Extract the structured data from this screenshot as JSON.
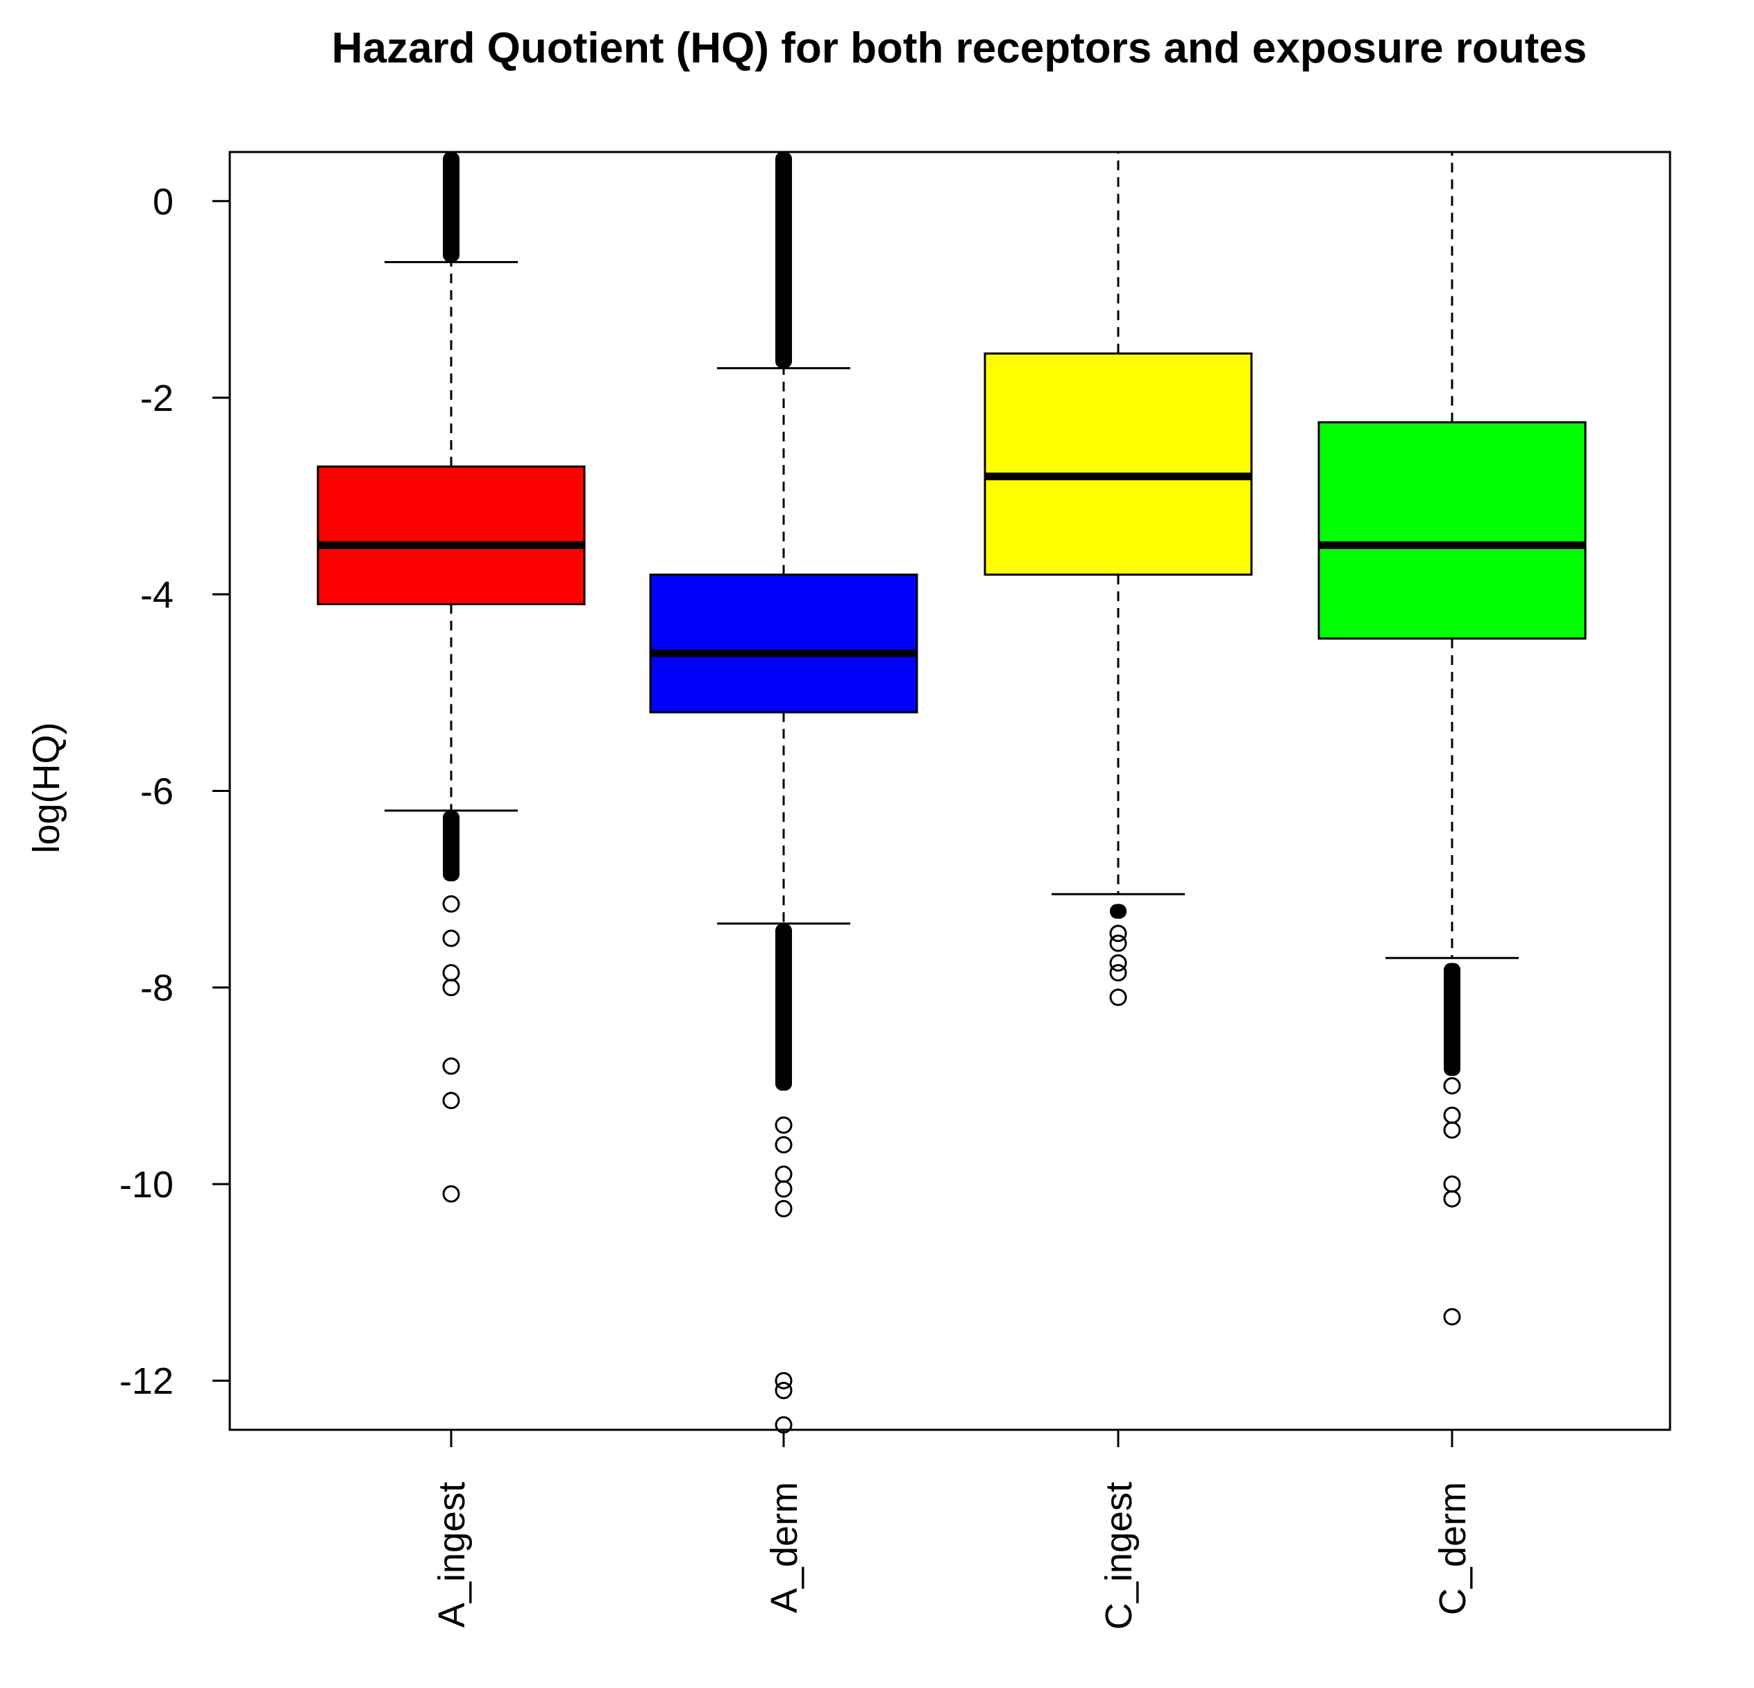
{
  "chart_data": {
    "type": "boxplot",
    "title": "Hazard Quotient (HQ) for both receptors and exposure routes",
    "xlabel": "",
    "ylabel": "log(HQ)",
    "ylim": [
      -12.5,
      0.5
    ],
    "yticks": [
      0,
      -2,
      -4,
      -6,
      -8,
      -10,
      -12
    ],
    "ytick_labels": [
      "0",
      "-2",
      "-4",
      "-6",
      "-8",
      "-10",
      "-12"
    ],
    "grid": false,
    "legend": "none",
    "categories": [
      "A_ingest",
      "A_derm",
      "C_ingest",
      "C_derm"
    ],
    "boxes": [
      {
        "category": "A_ingest",
        "color": "#ff0000",
        "whisker_low": -6.2,
        "q1": -4.1,
        "median": -3.5,
        "q3": -2.7,
        "whisker_high": -0.62,
        "outliers_high_range": [
          -0.62,
          0.5
        ],
        "outliers_low_range": [
          -6.92,
          -6.2
        ],
        "outliers_low": [
          -7.15,
          -7.5,
          -7.85,
          -8.0,
          -8.8,
          -9.15,
          -10.1
        ]
      },
      {
        "category": "A_derm",
        "color": "#0000ff",
        "whisker_low": -7.35,
        "q1": -5.2,
        "median": -4.6,
        "q3": -3.8,
        "whisker_high": -1.7,
        "outliers_high_range": [
          -1.7,
          0.5
        ],
        "outliers_low_range": [
          -9.05,
          -7.35
        ],
        "outliers_low": [
          -9.4,
          -9.6,
          -9.9,
          -10.05,
          -10.25,
          -12.0,
          -12.1,
          -12.45
        ]
      },
      {
        "category": "C_ingest",
        "color": "#ffff00",
        "whisker_low": -7.05,
        "q1": -3.8,
        "median": -2.8,
        "q3": -1.55,
        "whisker_high": 0.5,
        "outliers_high_range": null,
        "outliers_low_range": [
          -7.3,
          -7.15
        ],
        "outliers_low": [
          -7.45,
          -7.55,
          -7.75,
          -7.85,
          -8.1
        ]
      },
      {
        "category": "C_derm",
        "color": "#00ff00",
        "whisker_low": -7.7,
        "q1": -4.45,
        "median": -3.5,
        "q3": -2.25,
        "whisker_high": 0.5,
        "outliers_high_range": null,
        "outliers_low_range": [
          -8.9,
          -7.75
        ],
        "outliers_low": [
          -9.0,
          -9.3,
          -9.45,
          -10.0,
          -10.15,
          -11.35
        ]
      }
    ]
  }
}
